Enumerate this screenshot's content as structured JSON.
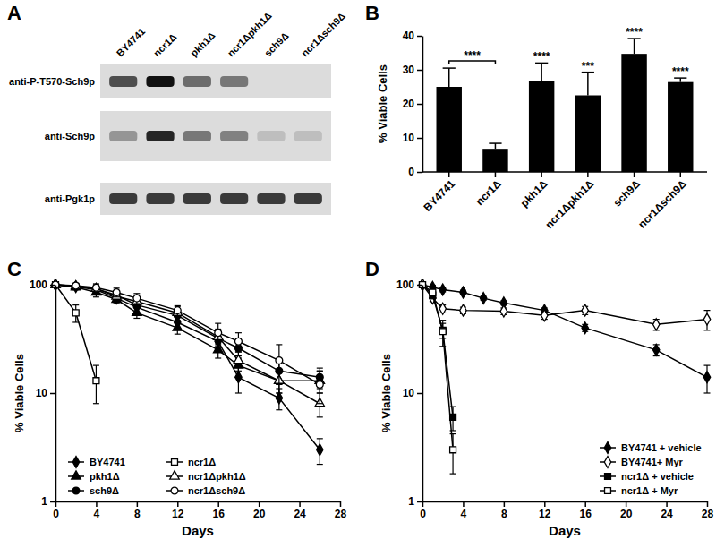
{
  "blot": {
    "title": "A",
    "lanes": [
      "BY4741",
      "ncr1Δ",
      "pkh1Δ",
      "ncr1Δpkh1Δ",
      "sch9Δ",
      "ncr1Δsch9Δ"
    ],
    "rows": [
      {
        "label": "anti-P-T570-Sch9p",
        "intensity": [
          0.7,
          1.0,
          0.55,
          0.5,
          0,
          0
        ]
      },
      {
        "label": "anti-Sch9p",
        "intensity": [
          0.35,
          0.9,
          0.5,
          0.45,
          0.15,
          0.15
        ]
      },
      {
        "label": "anti-Pgk1p",
        "intensity": [
          0.8,
          0.8,
          0.8,
          0.8,
          0.8,
          0.8
        ]
      }
    ]
  },
  "chart_data": [
    {
      "type": "bar",
      "title": "B",
      "categories": [
        "BY4741",
        "ncr1Δ",
        "pkh1Δ",
        "ncr1Δpkh1Δ",
        "sch9Δ",
        "ncr1Δsch9Δ"
      ],
      "values": [
        25,
        6.8,
        26.8,
        22.5,
        34.7,
        26.4
      ],
      "errors": [
        5.5,
        1.6,
        5.2,
        6.8,
        4.5,
        1.2
      ],
      "color": "#000000",
      "y_label": "% Viable Cells",
      "ylim": [
        0,
        40
      ],
      "yticks": [
        0,
        10,
        20,
        30,
        40
      ],
      "annotations": [
        {
          "text": "****",
          "x": [
            "BY4741",
            "ncr1Δ"
          ]
        },
        {
          "text": "****",
          "x": "pkh1Δ"
        },
        {
          "text": "***",
          "x": "ncr1Δpkh1Δ"
        },
        {
          "text": "****",
          "x": "sch9Δ"
        },
        {
          "text": "****",
          "x": "ncr1Δsch9Δ"
        }
      ]
    },
    {
      "type": "line",
      "title": "C",
      "log": "y",
      "legend": "lower left",
      "x_label": "Days",
      "y_label": "% Viable Cells",
      "xlim": [
        0,
        28
      ],
      "xticks": [
        0,
        4,
        8,
        12,
        16,
        20,
        24,
        28
      ],
      "ylim": [
        1,
        100
      ],
      "yticks": [
        1,
        10,
        100
      ],
      "series": [
        {
          "name": "BY4741",
          "color": "#000000",
          "marker": "diamond",
          "x": [
            0,
            2,
            4,
            6,
            8,
            12,
            16,
            18,
            22,
            26
          ],
          "values": [
            100,
            96,
            90,
            75,
            62,
            45,
            30,
            14,
            9,
            3
          ],
          "errors": [
            0,
            6,
            8,
            8,
            8,
            6,
            5,
            4,
            2,
            0.8
          ]
        },
        {
          "name": "pkh1Δ",
          "color": "#000000",
          "marker": "triangle",
          "x": [
            0,
            2,
            4,
            6,
            8,
            12,
            16,
            18,
            22,
            26
          ],
          "values": [
            100,
            95,
            85,
            73,
            55,
            40,
            25,
            18,
            13,
            13
          ],
          "errors": [
            0,
            5,
            8,
            6,
            6,
            5,
            4,
            4,
            3,
            3
          ]
        },
        {
          "name": "sch9Δ",
          "color": "#000000",
          "marker": "circle",
          "x": [
            0,
            2,
            4,
            6,
            8,
            12,
            16,
            18,
            22,
            26
          ],
          "values": [
            100,
            97,
            92,
            80,
            65,
            52,
            32,
            26,
            16,
            14
          ],
          "errors": [
            0,
            6,
            8,
            8,
            10,
            8,
            6,
            5,
            4,
            3
          ]
        },
        {
          "name": "ncr1Δ",
          "color": "#000000",
          "marker": "open-square",
          "x": [
            0,
            2,
            4
          ],
          "values": [
            100,
            55,
            13
          ],
          "errors": [
            0,
            10,
            5
          ]
        },
        {
          "name": "ncr1Δpkh1Δ",
          "color": "#000000",
          "marker": "open-triangle",
          "x": [
            0,
            2,
            4,
            6,
            8,
            12,
            16,
            18,
            22,
            26
          ],
          "values": [
            100,
            97,
            92,
            78,
            70,
            55,
            33,
            20,
            13,
            8
          ],
          "errors": [
            0,
            5,
            6,
            8,
            8,
            8,
            6,
            4,
            3,
            2
          ]
        },
        {
          "name": "ncr1Δsch9Δ",
          "color": "#000000",
          "marker": "open-circle",
          "x": [
            0,
            2,
            4,
            6,
            8,
            12,
            16,
            18,
            22,
            26
          ],
          "values": [
            100,
            98,
            94,
            85,
            75,
            58,
            36,
            30,
            20,
            12
          ],
          "errors": [
            0,
            5,
            8,
            8,
            8,
            6,
            8,
            6,
            8,
            4
          ]
        }
      ]
    },
    {
      "type": "line",
      "title": "D",
      "log": "y",
      "legend": "lower right",
      "x_label": "Days",
      "y_label": "% Viable Cells",
      "xlim": [
        0,
        28
      ],
      "xticks": [
        0,
        4,
        8,
        12,
        16,
        20,
        24,
        28
      ],
      "ylim": [
        1,
        100
      ],
      "yticks": [
        1,
        10,
        100
      ],
      "series": [
        {
          "name": "BY4741 + vehicle",
          "color": "#000000",
          "marker": "diamond",
          "x": [
            0,
            1,
            2,
            4,
            6,
            8,
            12,
            16,
            23,
            28
          ],
          "values": [
            100,
            95,
            90,
            85,
            75,
            68,
            58,
            40,
            25,
            14
          ],
          "errors": [
            0,
            4,
            4,
            4,
            3,
            3,
            3,
            3,
            3,
            4
          ]
        },
        {
          "name": "BY4741+ Myr",
          "color": "#000000",
          "marker": "open-diamond",
          "x": [
            0,
            1,
            2,
            4,
            8,
            12,
            16,
            23,
            28
          ],
          "values": [
            100,
            75,
            60,
            58,
            57,
            52,
            58,
            43,
            48
          ],
          "errors": [
            0,
            5,
            5,
            4,
            4,
            4,
            5,
            5,
            10
          ]
        },
        {
          "name": "ncr1Δ + vehicle",
          "color": "#000000",
          "marker": "square",
          "x": [
            0,
            1,
            2,
            3
          ],
          "values": [
            100,
            80,
            38,
            6
          ],
          "errors": [
            0,
            6,
            6,
            1.5
          ]
        },
        {
          "name": "ncr1Δ + Myr",
          "color": "#000000",
          "marker": "open-square",
          "x": [
            0,
            1,
            2,
            3
          ],
          "values": [
            100,
            85,
            37,
            3
          ],
          "errors": [
            0,
            5,
            10,
            1.2
          ]
        }
      ]
    }
  ]
}
